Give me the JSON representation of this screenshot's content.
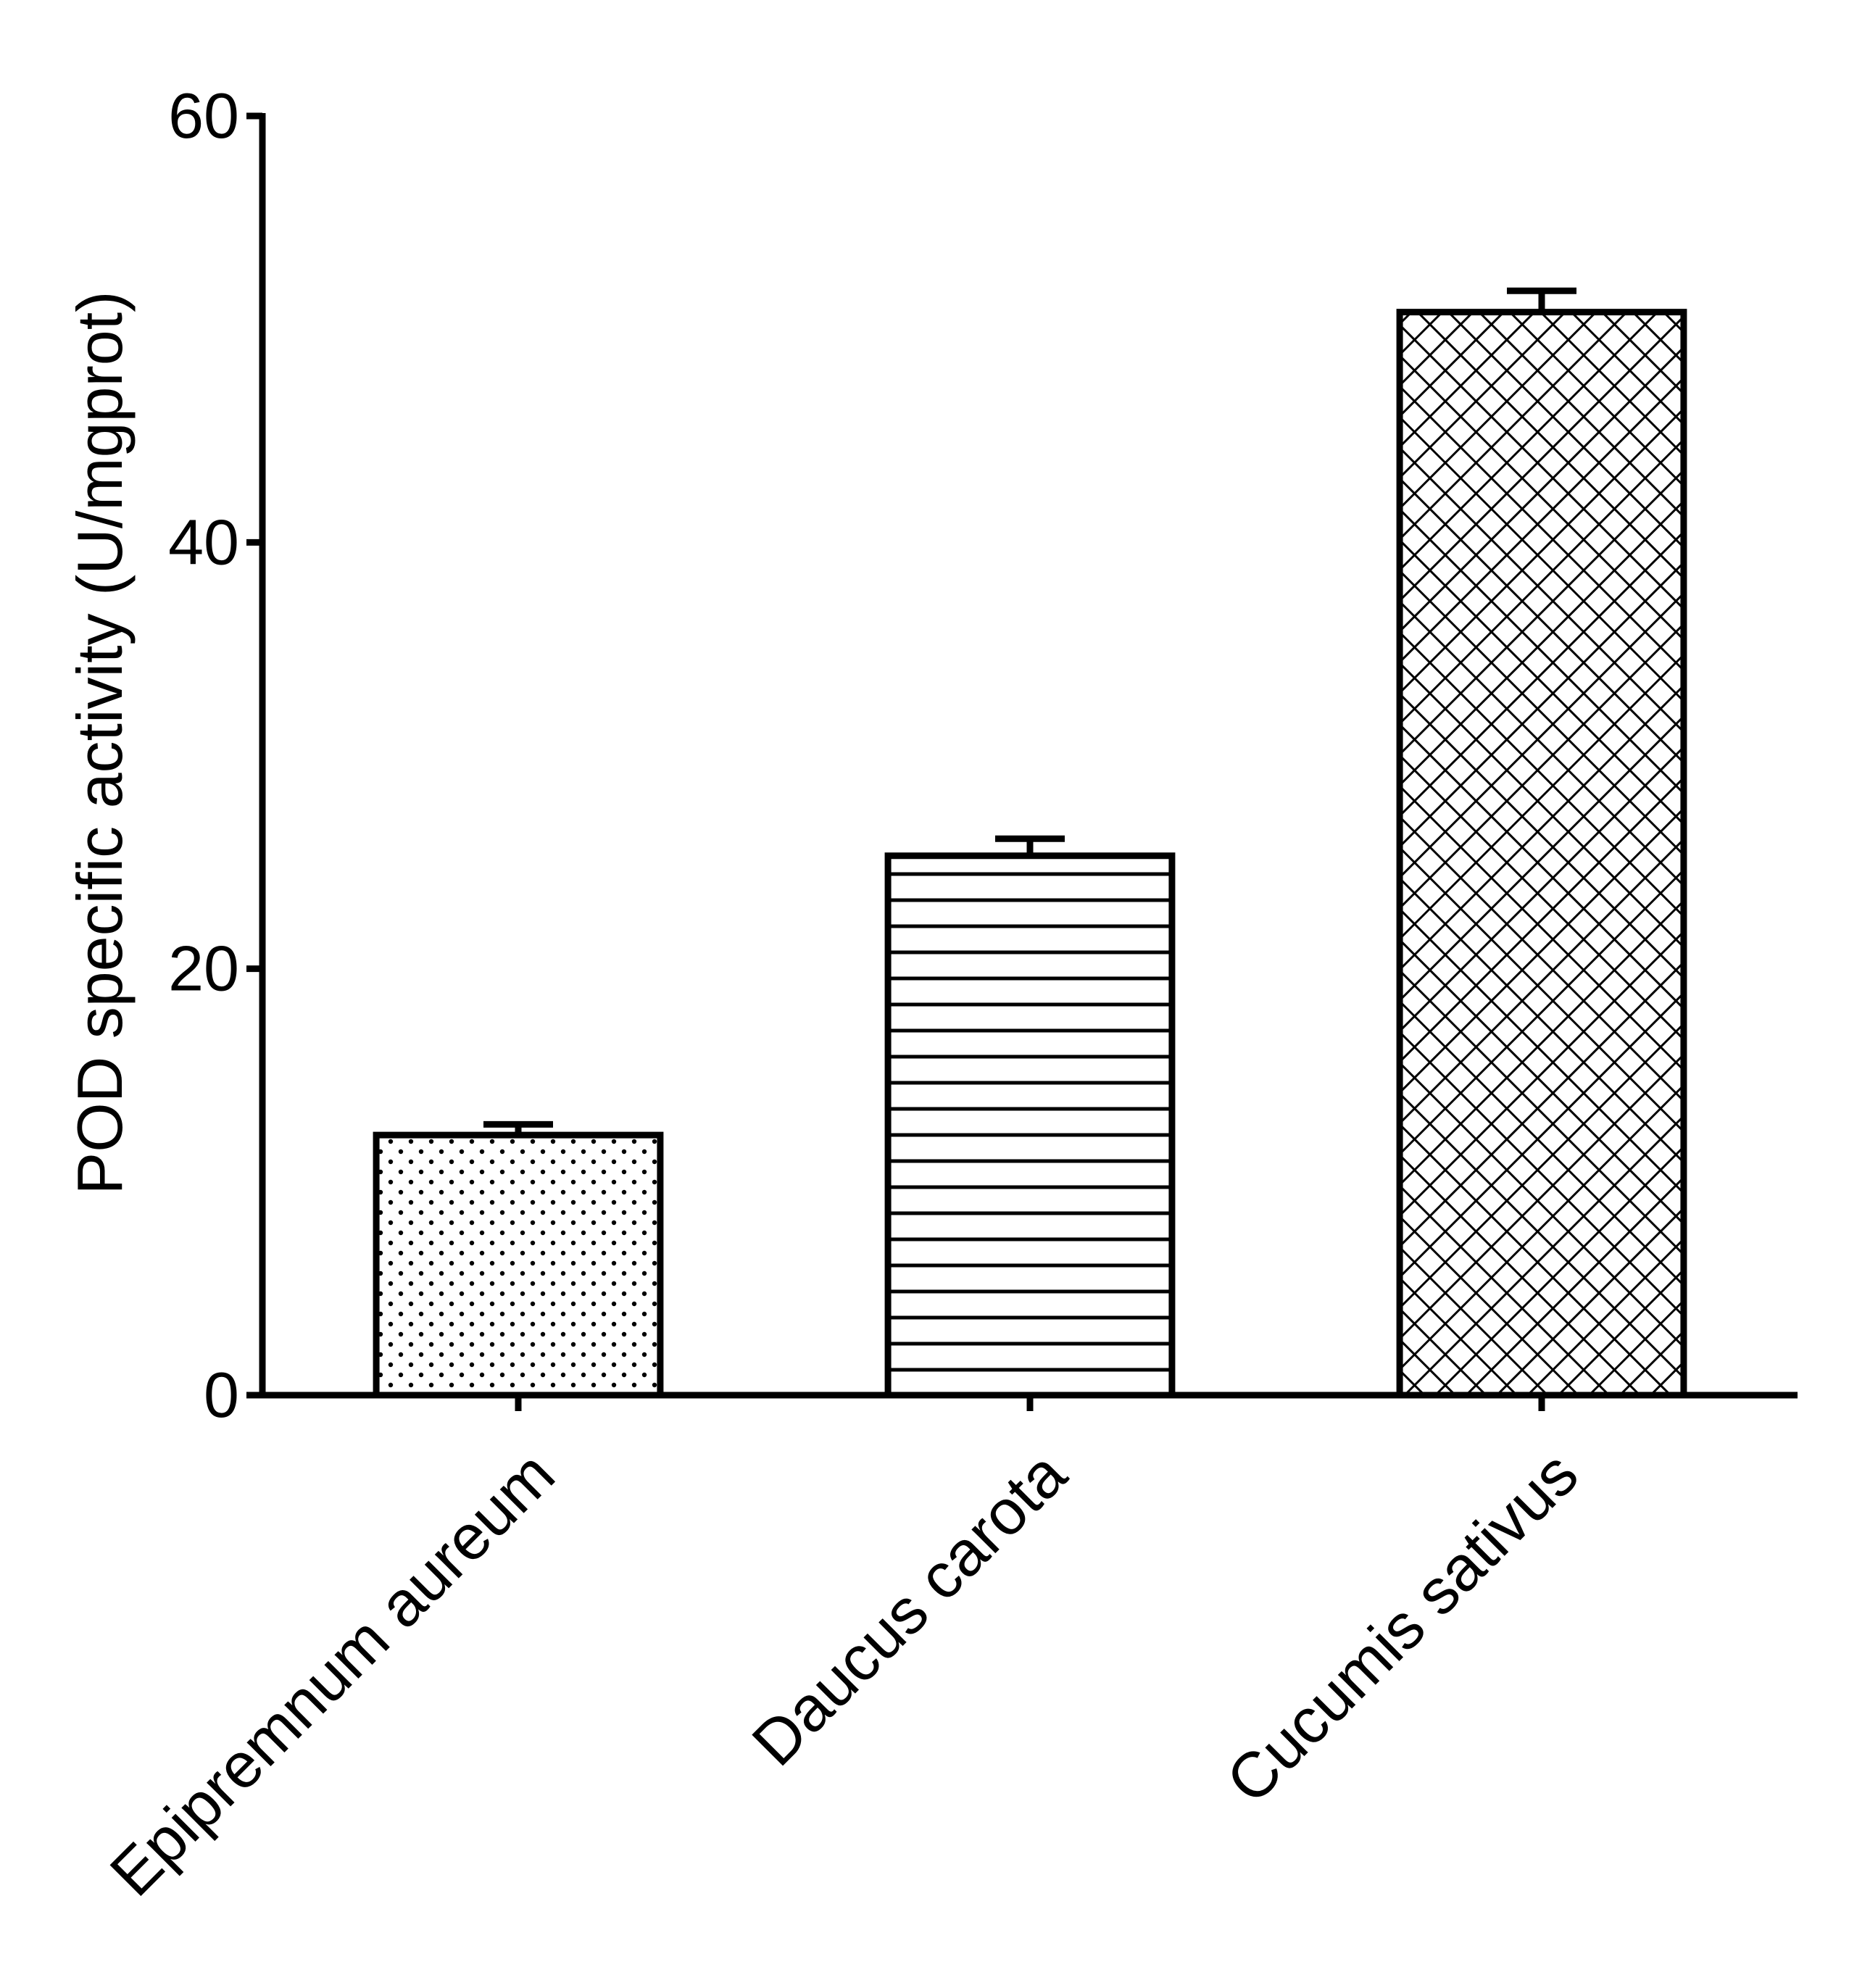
{
  "chart_data": {
    "type": "bar",
    "title": "",
    "xlabel": "",
    "ylabel": "POD specific activity (U/mgprot)",
    "categories": [
      "Epipremnum aureum",
      "Daucus carota",
      "Cucumis sativus"
    ],
    "values": [
      12.2,
      25.3,
      50.8
    ],
    "errors": [
      0.5,
      0.8,
      1.0
    ],
    "patterns": [
      "dots",
      "horizontal-lines",
      "crosshatch"
    ],
    "ylim": [
      0,
      60
    ],
    "yticks": [
      0,
      20,
      40,
      60
    ],
    "grid": false,
    "legend": "none",
    "colors": {
      "bar_fill": "#ffffff",
      "stroke": "#000000"
    }
  }
}
